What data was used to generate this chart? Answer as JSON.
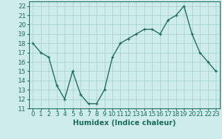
{
  "x": [
    0,
    1,
    2,
    3,
    4,
    5,
    6,
    7,
    8,
    9,
    10,
    11,
    12,
    13,
    14,
    15,
    16,
    17,
    18,
    19,
    20,
    21,
    22,
    23
  ],
  "y": [
    18,
    17,
    16.5,
    13.5,
    12,
    15,
    12.5,
    11.5,
    11.5,
    13,
    16.5,
    18,
    18.5,
    19,
    19.5,
    19.5,
    19,
    20.5,
    21,
    22,
    19,
    17,
    16,
    15
  ],
  "line_color": "#1a6b5a",
  "bg_color": "#cdecea",
  "grid_color": "#9ecfcc",
  "xlabel": "Humidex (Indice chaleur)",
  "xlim": [
    -0.5,
    23.5
  ],
  "ylim": [
    11,
    22.5
  ],
  "yticks": [
    11,
    12,
    13,
    14,
    15,
    16,
    17,
    18,
    19,
    20,
    21,
    22
  ],
  "xticks": [
    0,
    1,
    2,
    3,
    4,
    5,
    6,
    7,
    8,
    9,
    10,
    11,
    12,
    13,
    14,
    15,
    16,
    17,
    18,
    19,
    20,
    21,
    22,
    23
  ],
  "xlabel_fontsize": 7.5,
  "tick_fontsize": 6.5,
  "marker": "+",
  "marker_size": 3.5,
  "linewidth": 1.0
}
